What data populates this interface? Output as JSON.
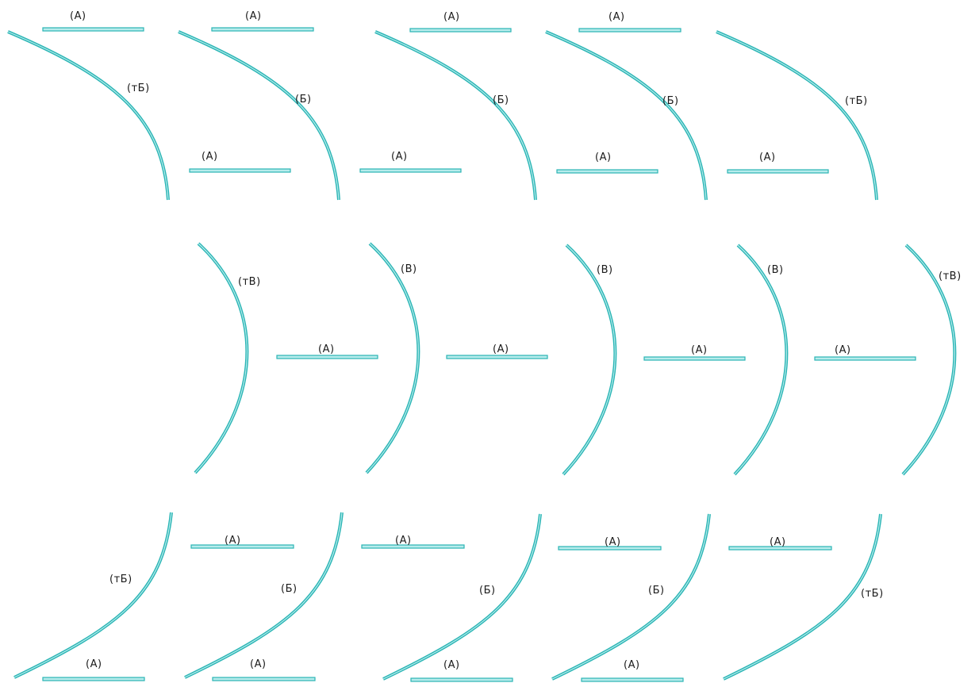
{
  "colors": {
    "stroke": "#2bb5b5",
    "stroke_light": "#b7ecec",
    "text": "#1a1a1a",
    "background": "#ffffff"
  },
  "labels": {
    "a": "(А)",
    "b": "(Б)",
    "tb": "(тБ)",
    "v": "(В)",
    "tv": "(тВ)"
  }
}
